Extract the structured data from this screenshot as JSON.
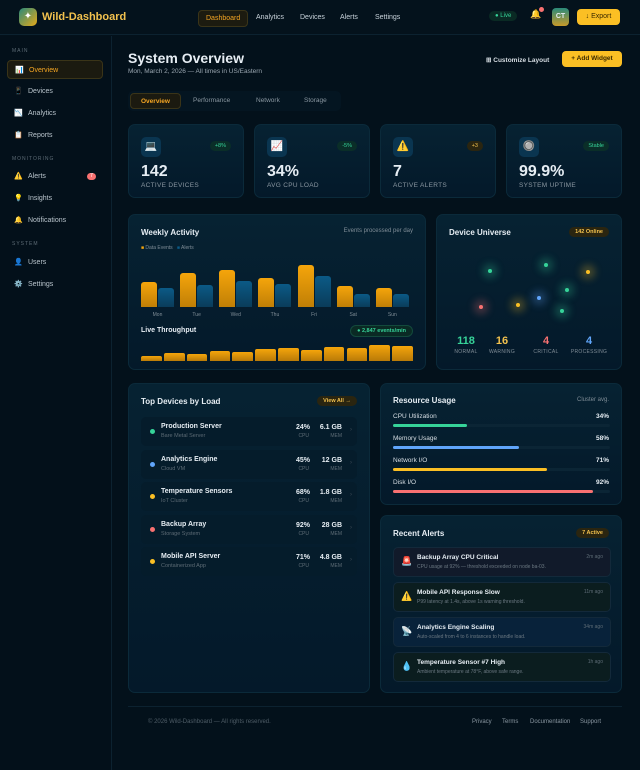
{
  "header": {
    "brand": "Wild-Dashboard",
    "logo_icon": "sparkle-icon",
    "nav": [
      "Dashboard",
      "Analytics",
      "Devices",
      "Alerts",
      "Settings"
    ],
    "active_nav": "Dashboard",
    "live": "Live",
    "notification_count": "2",
    "avatar": "CT",
    "export": "↓ Export"
  },
  "sidebar": {
    "sections": [
      {
        "label": "MAIN",
        "items": [
          {
            "label": "Overview",
            "icon": "📊",
            "active": true
          },
          {
            "label": "Devices",
            "icon": "📱"
          },
          {
            "label": "Analytics",
            "icon": "📉"
          },
          {
            "label": "Reports",
            "icon": "📋"
          }
        ]
      },
      {
        "label": "MONITORING",
        "items": [
          {
            "label": "Alerts",
            "icon": "⚠️",
            "badge": "7"
          },
          {
            "label": "Insights",
            "icon": "💡"
          },
          {
            "label": "Notifications",
            "icon": "🔔"
          }
        ]
      },
      {
        "label": "SYSTEM",
        "items": [
          {
            "label": "Users",
            "icon": "👤"
          },
          {
            "label": "Settings",
            "icon": "⚙️"
          }
        ]
      }
    ]
  },
  "page": {
    "title": "System Overview",
    "subtitle": "Mon, March 2, 2026 — All times in US/Eastern",
    "customize": "⊞ Customize Layout",
    "add_widget": "+ Add Widget",
    "tabs": [
      "Overview",
      "Performance",
      "Network",
      "Storage"
    ]
  },
  "stats": [
    {
      "icon": "💻",
      "delta": "+8%",
      "value": "142",
      "label": "ACTIVE DEVICES",
      "tone": "#36d399"
    },
    {
      "icon": "📈",
      "delta": "-5%",
      "value": "34%",
      "label": "AVG CPU LOAD",
      "tone": "#36d399"
    },
    {
      "icon": "⚠️",
      "delta": "+3",
      "value": "7",
      "label": "ACTIVE ALERTS",
      "tone": "#f2c14e"
    },
    {
      "icon": "🔘",
      "delta": "Stable",
      "value": "99.9%",
      "label": "SYSTEM UPTIME",
      "tone": "#36d399"
    }
  ],
  "weekly": {
    "title": "Weekly Activity",
    "subtitle": "Events processed per day",
    "throughput_title": "Live Throughput",
    "throughput_badge": "2,847 events/min"
  },
  "chart_data": [
    {
      "type": "bar",
      "categories": [
        "Mon",
        "Tue",
        "Wed",
        "Thu",
        "Fri",
        "Sat",
        "Sun"
      ],
      "series": [
        {
          "name": "Data Events",
          "color": "#f5a50b",
          "values": [
            60,
            80,
            88,
            70,
            100,
            50,
            45
          ]
        },
        {
          "name": "Alerts",
          "color": "#0b5a86",
          "values": [
            45,
            52,
            62,
            55,
            74,
            32,
            30
          ]
        }
      ]
    },
    {
      "type": "bar",
      "series": [
        {
          "color": "#f5a50b",
          "values": [
            5,
            8,
            7,
            10,
            9,
            12,
            13,
            11,
            14,
            13,
            16,
            15
          ]
        }
      ]
    }
  ],
  "universe": {
    "title": "Device Universe",
    "badge": "142 Online",
    "stats": [
      {
        "value": "118",
        "label": "NORMAL",
        "color": "#36d399"
      },
      {
        "value": "16",
        "label": "WARNING",
        "color": "#f2c14e"
      },
      {
        "value": "4",
        "label": "CRITICAL",
        "color": "#f87171"
      },
      {
        "value": "4",
        "label": "PROCESSING",
        "color": "#60a5fa"
      }
    ]
  },
  "devices": {
    "title": "Top Devices by Load",
    "view_all": "View All →",
    "cpu_label": "CPU",
    "mem_label": "MEM",
    "items": [
      {
        "name": "Production Server",
        "type": "Bare Metal Server",
        "cpu": "24%",
        "mem": "6.1 GB",
        "color": "#36d399"
      },
      {
        "name": "Analytics Engine",
        "type": "Cloud VM",
        "cpu": "45%",
        "mem": "12 GB",
        "color": "#60a5fa"
      },
      {
        "name": "Temperature Sensors",
        "type": "IoT Cluster",
        "cpu": "68%",
        "mem": "1.8 GB",
        "color": "#fbbf24"
      },
      {
        "name": "Backup Array",
        "type": "Storage System",
        "cpu": "92%",
        "mem": "28 GB",
        "color": "#f87171"
      },
      {
        "name": "Mobile API Server",
        "type": "Containerized App",
        "cpu": "71%",
        "mem": "4.8 GB",
        "color": "#fbbf24"
      }
    ]
  },
  "resources": {
    "title": "Resource Usage",
    "subtitle": "Cluster avg.",
    "items": [
      {
        "label": "CPU Utilization",
        "value": "34%",
        "pct": 34,
        "color": "#36d399"
      },
      {
        "label": "Memory Usage",
        "value": "58%",
        "pct": 58,
        "color": "#60a5fa"
      },
      {
        "label": "Network I/O",
        "value": "71%",
        "pct": 71,
        "color": "#fbbf24"
      },
      {
        "label": "Disk I/O",
        "value": "92%",
        "pct": 92,
        "color": "#f87171"
      }
    ]
  },
  "alerts": {
    "title": "Recent Alerts",
    "badge": "7 Active",
    "items": [
      {
        "icon": "🚨",
        "title": "Backup Array CPU Critical",
        "desc": "CPU usage at 92% — threshold exceeded on node ba-03.",
        "time": "2m ago",
        "bg": "#111a2a"
      },
      {
        "icon": "⚠️",
        "title": "Mobile API Response Slow",
        "desc": "P99 latency at 1.4s, above 1s warning threshold.",
        "time": "11m ago",
        "bg": "#0b1d1f"
      },
      {
        "icon": "📡",
        "title": "Analytics Engine Scaling",
        "desc": "Auto-scaled from 4 to 6 instances to handle load.",
        "time": "34m ago",
        "bg": "#08223a"
      },
      {
        "icon": "💧",
        "title": "Temperature Sensor #7 High",
        "desc": "Ambient temperature at 78°F, above safe range.",
        "time": "1h ago",
        "bg": "#0b1d1f"
      }
    ]
  },
  "footer": {
    "copyright": "© 2026 Wild-Dashboard — All rights reserved.",
    "links": [
      "Privacy",
      "Terms",
      "Documentation",
      "Support"
    ]
  }
}
